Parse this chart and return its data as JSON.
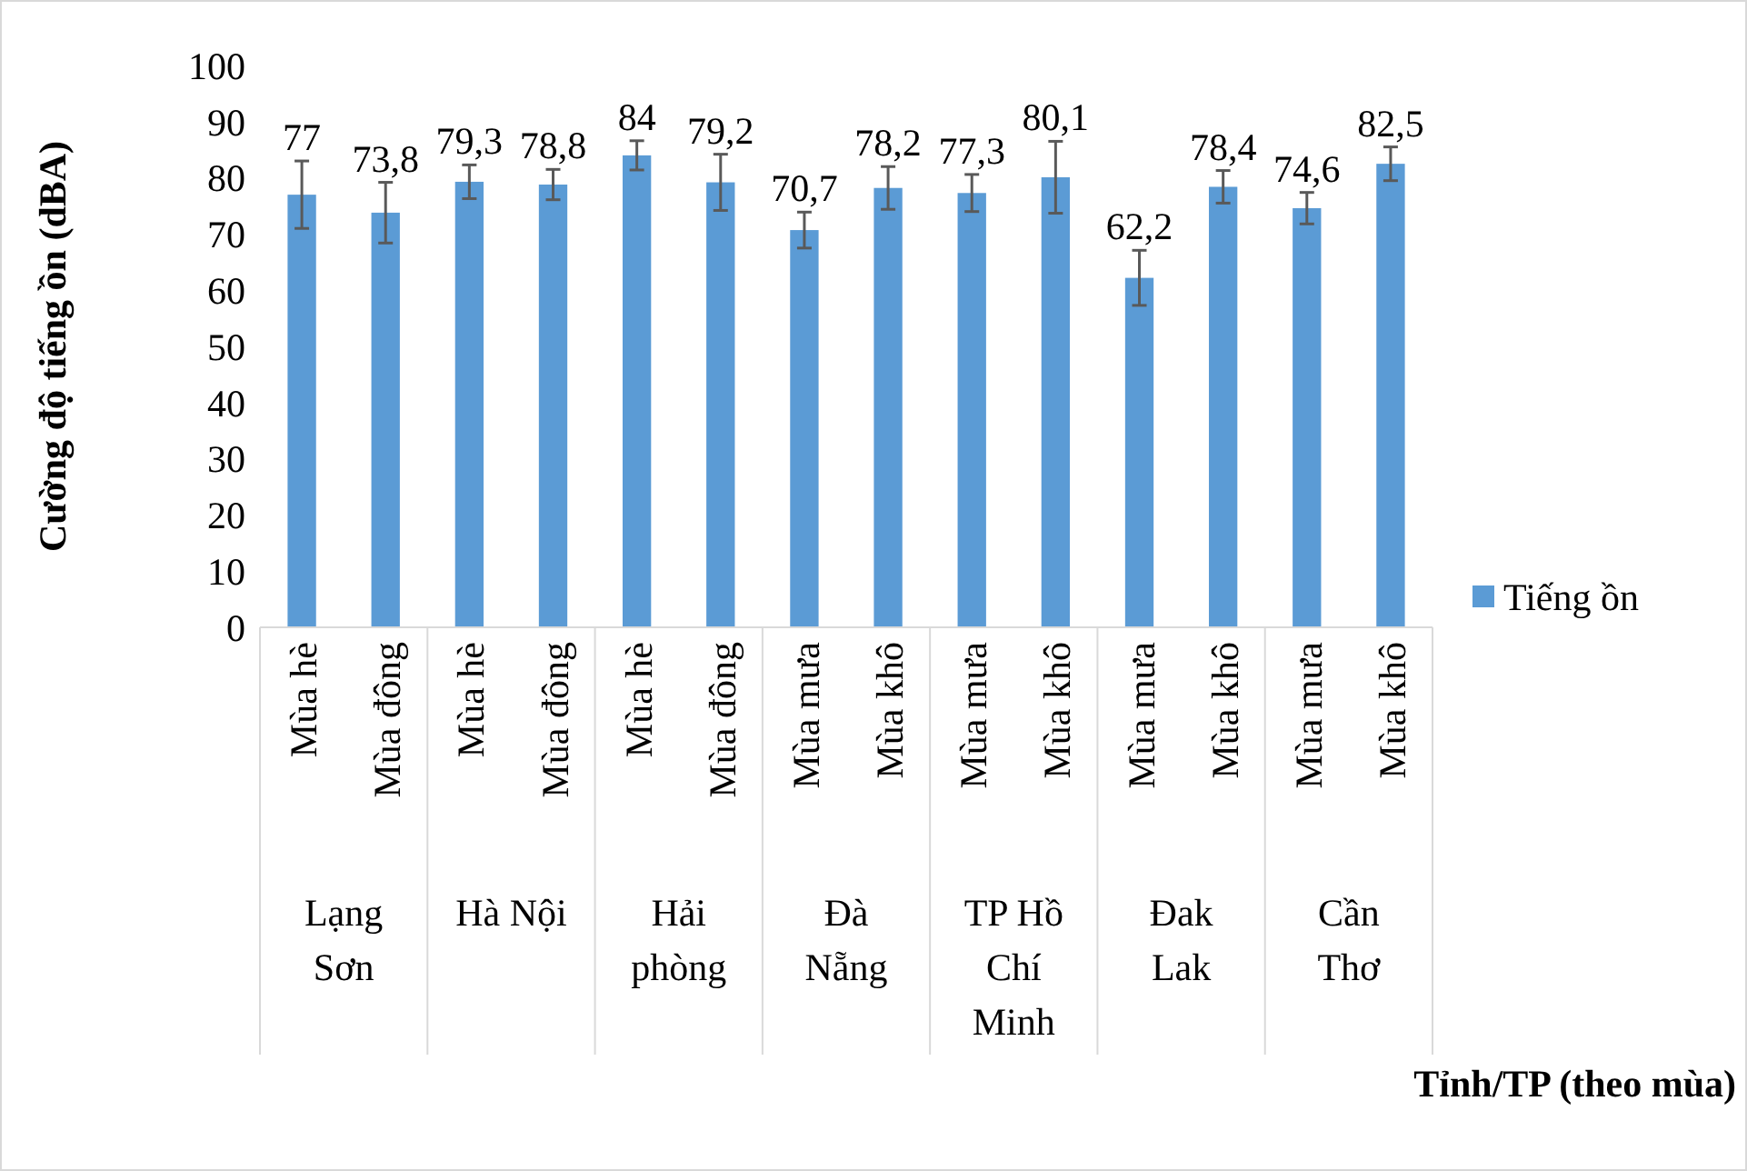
{
  "chart_data": {
    "type": "bar",
    "ylabel": "Cường độ tiếng ồn (dBA)",
    "categories": [
      "Mùa hè",
      "Mùa đông",
      "Mùa hè",
      "Mùa đông",
      "Mùa hè",
      "Mùa đông",
      "Mùa mưa",
      "Mùa khô",
      "Mùa mưa",
      "Mùa khô",
      "Mùa mưa",
      "Mùa khô",
      "Mùa mưa",
      "Mùa khô"
    ],
    "annotations": [
      "Lạng Sơn",
      "Hà Nội",
      "Hải phòng",
      "Đà Nẵng",
      "TP Hồ Chí Minh",
      "Đak Lak",
      "Cần Thơ",
      "Tỉnh/TP (theo mùa)"
    ],
    "series": [
      {
        "name": "Tiếng ồn",
        "color": "#5b9bd5",
        "values": [
          77,
          73.8,
          79.3,
          78.8,
          84,
          79.2,
          70.7,
          78.2,
          77.3,
          80.1,
          62.2,
          78.4,
          74.6,
          82.5
        ],
        "errors": [
          6,
          5.4,
          3,
          2.7,
          2.6,
          5,
          3.2,
          3.8,
          3.3,
          6.4,
          4.9,
          2.9,
          2.8,
          3
        ]
      }
    ],
    "value_labels": [
      "77",
      "73,8",
      "79,3",
      "78,8",
      "84",
      "79,2",
      "70,7",
      "78,2",
      "77,3",
      "80,1",
      "62,2",
      "78,4",
      "74,6",
      "82,5"
    ],
    "ylim": [
      0,
      100
    ],
    "yticks": [
      0,
      10,
      20,
      30,
      40,
      50,
      60,
      70,
      80,
      90,
      100
    ],
    "grid": false,
    "legend": "right"
  }
}
